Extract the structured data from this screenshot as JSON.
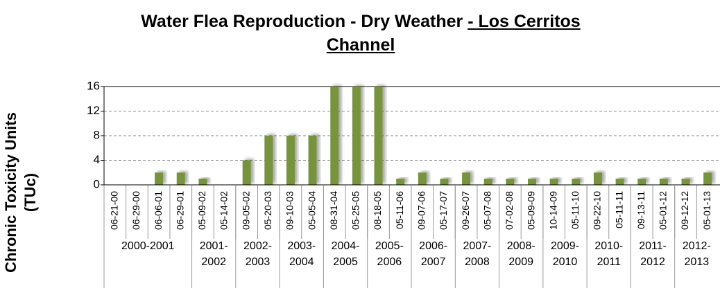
{
  "chart_data": {
    "type": "bar",
    "title": [
      "Water Flea Reproduction - Dry Weather  ",
      "- Los Cerritos Channel"
    ],
    "ylabel": "Chronic Toxicity Units (TUc)",
    "categories": [
      "06-21-00",
      "06-29-00",
      "06-06-01",
      "06-29-01",
      "05-09-02",
      "05-14-02",
      "09-05-02",
      "05-20-03",
      "09-10-03",
      "05-05-04",
      "08-31-04",
      "05-25-05",
      "08-18-05",
      "05-11-06",
      "09-07-06",
      "05-17-07",
      "09-26-07",
      "05-07-08",
      "07-02-08",
      "05-09-09",
      "10-14-09",
      "05-11-10",
      "09-22-10",
      "05-11-11",
      "09-13-11",
      "05-01-12",
      "09-12-12",
      "05-01-13"
    ],
    "values": [
      0,
      0,
      2,
      2,
      1,
      0,
      4,
      8,
      8,
      8,
      16,
      16,
      16,
      1,
      2,
      1,
      2,
      1,
      1,
      1,
      1,
      1,
      2,
      1,
      1,
      1,
      1,
      2
    ],
    "groups": [
      {
        "label": "2000-2001",
        "count": 4
      },
      {
        "label": "2001-2002",
        "count": 2
      },
      {
        "label": "2002-2003",
        "count": 2
      },
      {
        "label": "2003-2004",
        "count": 2
      },
      {
        "label": "2004-2005",
        "count": 2
      },
      {
        "label": "2005-2006",
        "count": 2
      },
      {
        "label": "2006-2007",
        "count": 2
      },
      {
        "label": "2007-2008",
        "count": 2
      },
      {
        "label": "2008-2009",
        "count": 2
      },
      {
        "label": "2009-2010",
        "count": 2
      },
      {
        "label": "2010-2011",
        "count": 2
      },
      {
        "label": "2011-2012",
        "count": 2
      },
      {
        "label": "2012-2013",
        "count": 2
      }
    ],
    "color": "#77933c",
    "ylim": [
      0,
      16
    ],
    "yticks": [
      0,
      4,
      8,
      12,
      16
    ],
    "grid": true
  }
}
